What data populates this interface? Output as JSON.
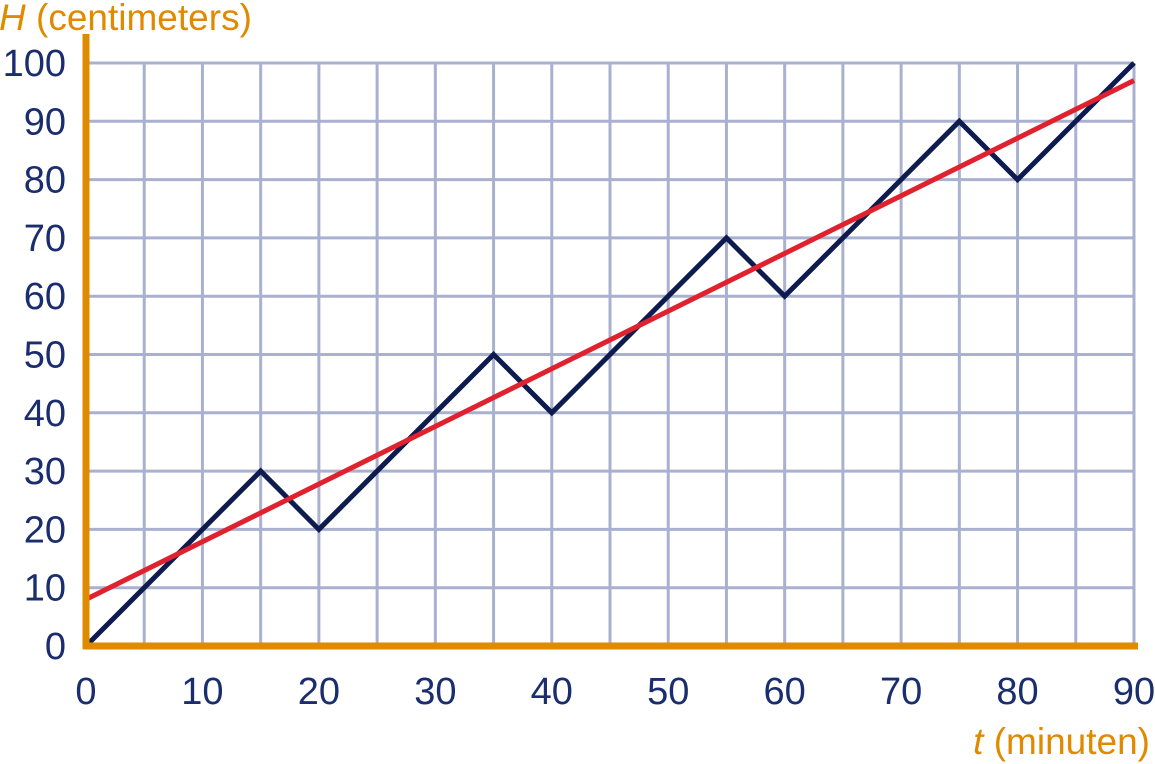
{
  "chart_data": {
    "type": "line",
    "x_axis": {
      "label_symbol": "t",
      "label_unit": " (minuten)",
      "range": [
        0,
        90
      ],
      "ticks": [
        0,
        10,
        20,
        30,
        40,
        50,
        60,
        70,
        80,
        90
      ],
      "minor_step": 5
    },
    "y_axis": {
      "label_symbol": "H",
      "label_unit": " (centimeters)",
      "range": [
        0,
        100
      ],
      "ticks": [
        0,
        10,
        20,
        30,
        40,
        50,
        60,
        70,
        80,
        90,
        100
      ]
    },
    "grid": true,
    "series": [
      {
        "color": "#0d1b4f",
        "points": [
          [
            0,
            0
          ],
          [
            15,
            30
          ],
          [
            20,
            20
          ],
          [
            35,
            50
          ],
          [
            40,
            40
          ],
          [
            55,
            70
          ],
          [
            60,
            60
          ],
          [
            75,
            90
          ],
          [
            80,
            80
          ],
          [
            90,
            100
          ]
        ]
      },
      {
        "color": "#e0212e",
        "points": [
          [
            0,
            8
          ],
          [
            90,
            97
          ]
        ]
      }
    ],
    "colors": {
      "axis": "#e08a00",
      "grid": "#aab0cf",
      "tick_text": "#1a2d6e",
      "axis_title": "#e08a00"
    }
  }
}
